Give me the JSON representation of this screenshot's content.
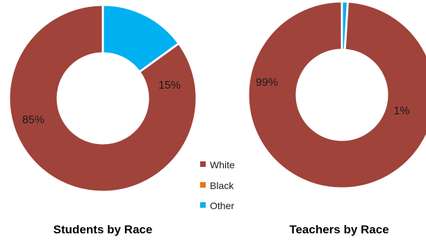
{
  "colors": {
    "White": "#A0433A",
    "Black": "#E8741C",
    "Other": "#00B0F0",
    "separator": "#ffffff"
  },
  "legend": {
    "items": [
      {
        "label": "White",
        "color_key": "White"
      },
      {
        "label": "Black",
        "color_key": "Black"
      },
      {
        "label": "Other",
        "color_key": "Other"
      }
    ]
  },
  "chart_data": [
    {
      "type": "pie",
      "subtype": "donut",
      "title": "Students by Race",
      "categories": [
        "White",
        "Black",
        "Other"
      ],
      "values": [
        85,
        0,
        15
      ],
      "labels": [
        "85%",
        "",
        "15%"
      ]
    },
    {
      "type": "pie",
      "subtype": "donut",
      "title": "Teachers by Race",
      "categories": [
        "White",
        "Black",
        "Other"
      ],
      "values": [
        99,
        0,
        1
      ],
      "labels": [
        "99%",
        "",
        "1%"
      ]
    }
  ]
}
